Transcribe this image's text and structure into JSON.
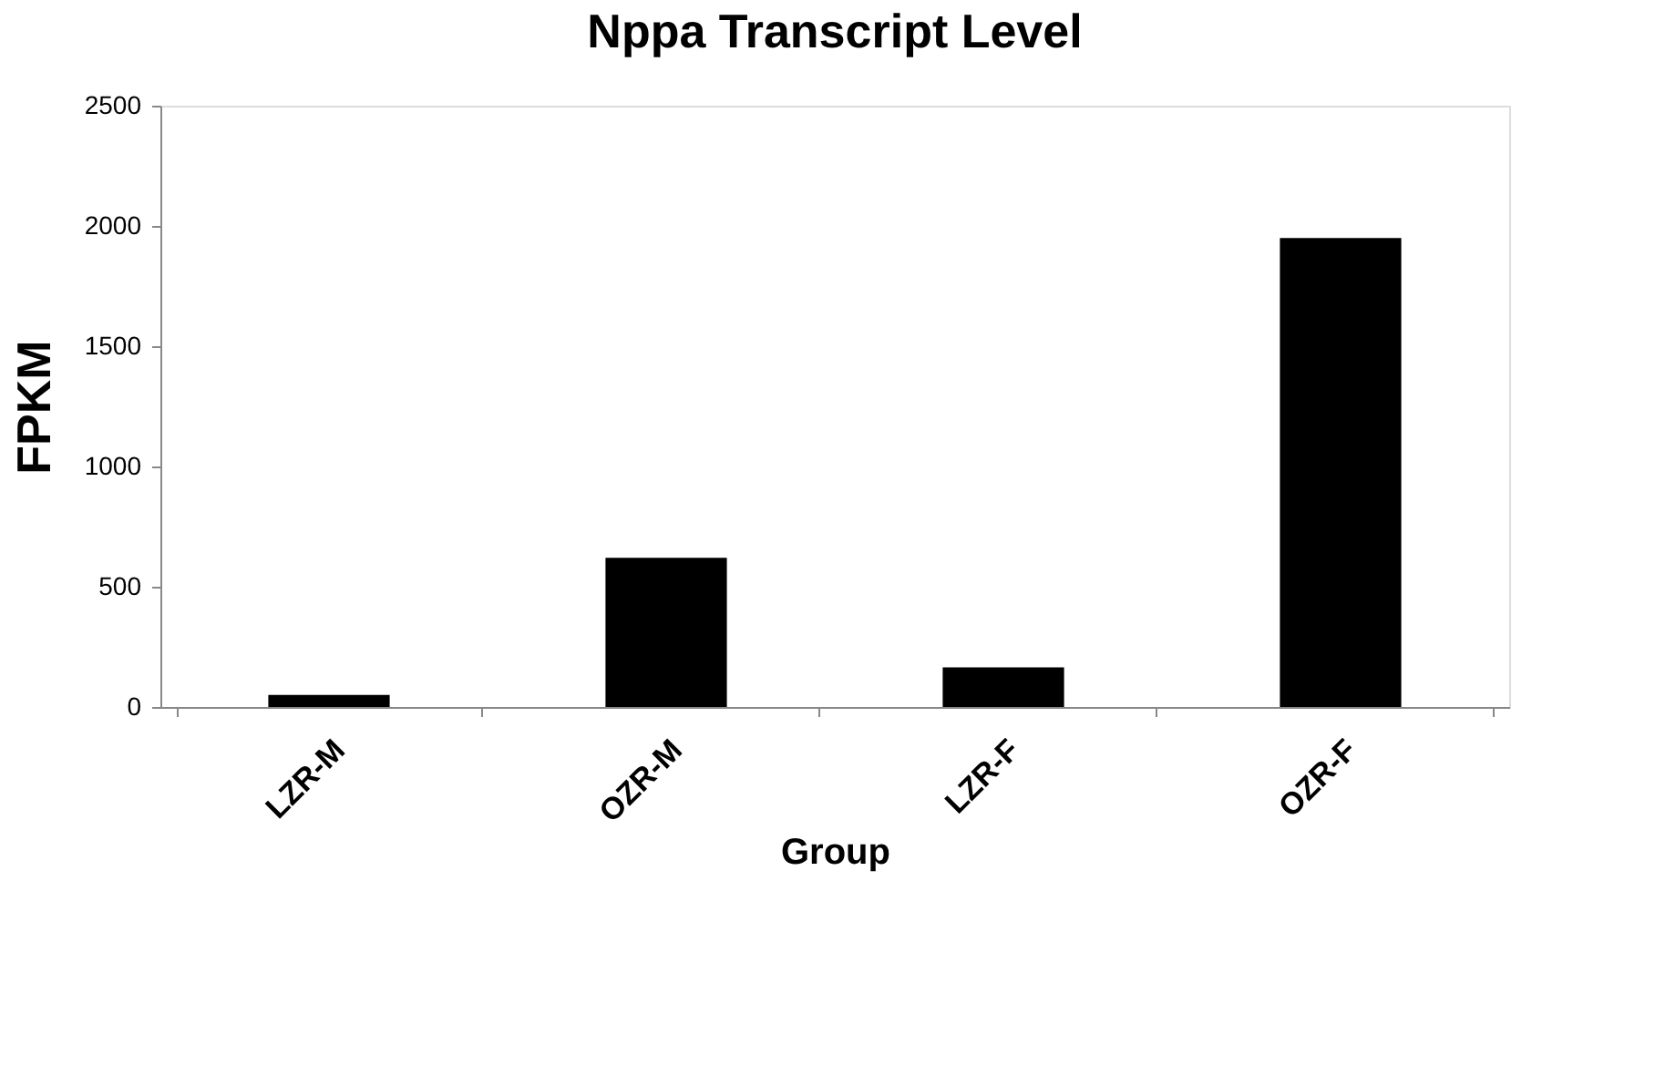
{
  "chart_data": {
    "type": "bar",
    "title": "Nppa Transcript Level",
    "xlabel": "Group",
    "ylabel": "FPKM",
    "categories": [
      "LZR-M",
      "OZR-M",
      "LZR-F",
      "OZR-F"
    ],
    "values": [
      50,
      620,
      165,
      1950
    ],
    "color": "#000000",
    "ylim": [
      0,
      2500
    ],
    "yticks": [
      0,
      500,
      1000,
      1500,
      2000,
      2500
    ],
    "grid": false
  }
}
